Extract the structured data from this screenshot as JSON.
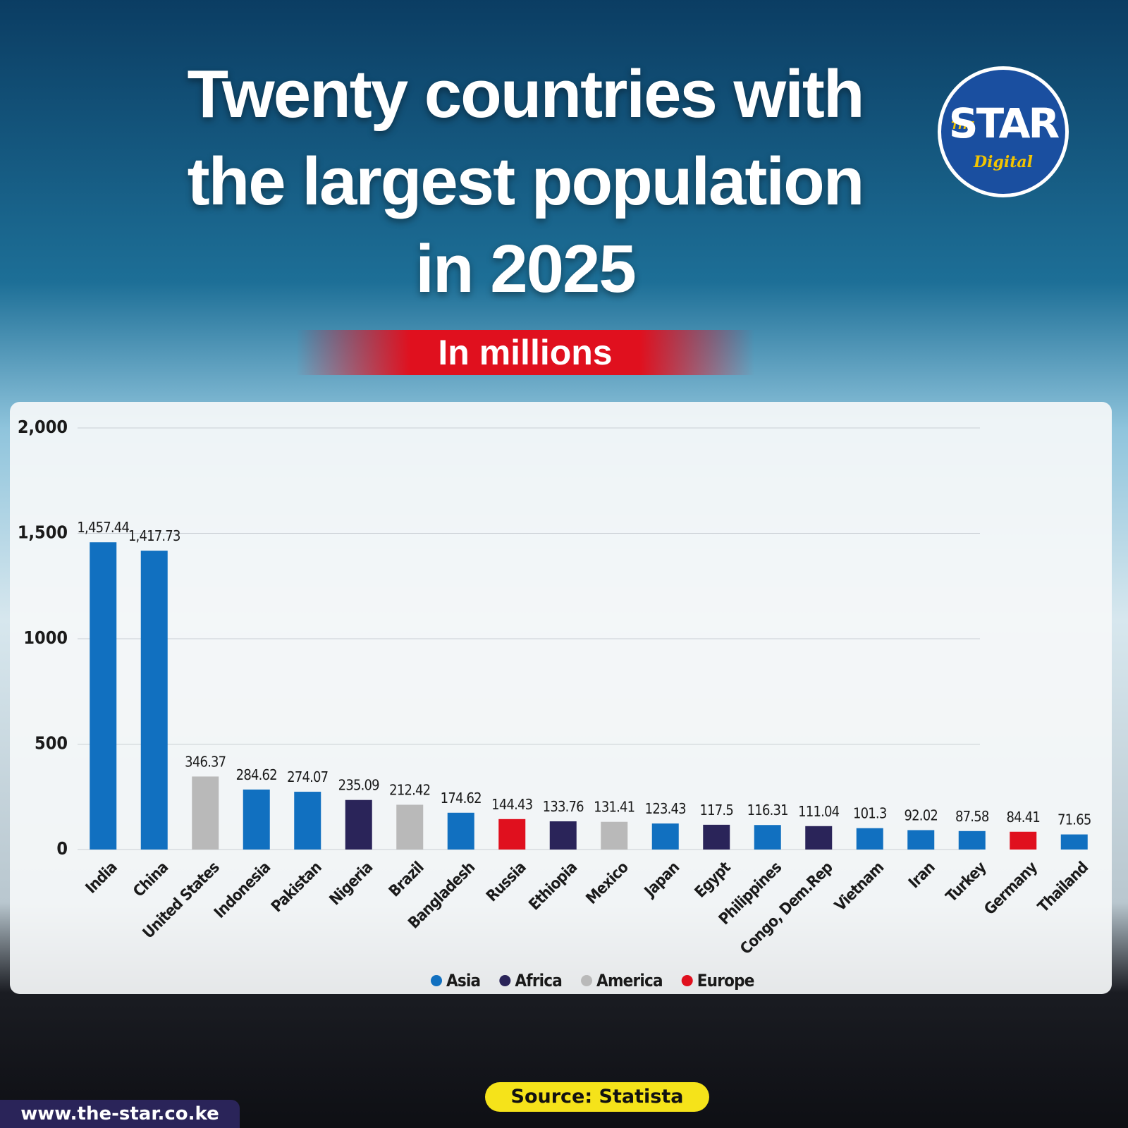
{
  "chart_data": {
    "type": "bar",
    "title": "Twenty countries with the largest population in 2025",
    "subtitle": "In millions",
    "categories": [
      "India",
      "China",
      "United States",
      "Indonesia",
      "Pakistan",
      "Nigeria",
      "Brazil",
      "Bangladesh",
      "Russia",
      "Ethiopia",
      "Mexico",
      "Japan",
      "Egypt",
      "Philippines",
      "Congo, Dem.Rep",
      "Vietnam",
      "Iran",
      "Turkey",
      "Germany",
      "Thailand"
    ],
    "values": [
      1457.44,
      1417.73,
      346.37,
      284.62,
      274.07,
      235.09,
      212.42,
      174.62,
      144.43,
      133.76,
      131.41,
      123.43,
      117.5,
      116.31,
      111.04,
      101.3,
      92.02,
      87.58,
      84.41,
      71.65
    ],
    "value_labels": [
      "1,457.44",
      "1,417.73",
      "346.37",
      "284.62",
      "274.07",
      "235.09",
      "212.42",
      "174.62",
      "144.43",
      "133.76",
      "131.41",
      "123.43",
      "117.5",
      "116.31",
      "111.04",
      "101.3",
      "92.02",
      "87.58",
      "84.41",
      "71.65"
    ],
    "colors": [
      "#1170c0",
      "#1170c0",
      "#b9b9b9",
      "#1170c0",
      "#1170c0",
      "#2a2459",
      "#b9b9b9",
      "#1170c0",
      "#e0101e",
      "#2a2459",
      "#b9b9b9",
      "#1170c0",
      "#2a2459",
      "#1170c0",
      "#2a2459",
      "#1170c0",
      "#1170c0",
      "#1170c0",
      "#e0101e",
      "#1170c0"
    ],
    "legend": [
      {
        "name": "Asia",
        "color": "#1170c0"
      },
      {
        "name": "Africa",
        "color": "#2a2459"
      },
      {
        "name": "America",
        "color": "#b9b9b9"
      },
      {
        "name": "Europe",
        "color": "#e0101e"
      }
    ],
    "ylim": [
      0,
      2000
    ],
    "yticks": [
      0,
      500,
      1000,
      {
        "value": 1500,
        "label": "1,500"
      },
      {
        "value": 2000,
        "label": "2,000"
      }
    ],
    "grid": true,
    "source": "Source: Statista"
  },
  "branding": {
    "logo_top": "THE",
    "logo_main": "STAR",
    "logo_sub": "Digital",
    "website": "www.the-star.co.ke"
  }
}
